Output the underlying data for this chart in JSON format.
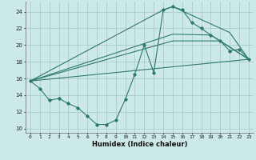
{
  "xlabel": "Humidex (Indice chaleur)",
  "bg_color": "#cde8e8",
  "grid_color": "#a8cccc",
  "line_color": "#2d7b6e",
  "xlim": [
    -0.5,
    23.5
  ],
  "ylim": [
    9.5,
    25.2
  ],
  "xticks": [
    0,
    1,
    2,
    3,
    4,
    5,
    6,
    7,
    8,
    9,
    10,
    11,
    12,
    13,
    14,
    15,
    16,
    17,
    18,
    19,
    20,
    21,
    22,
    23
  ],
  "yticks": [
    10,
    12,
    14,
    16,
    18,
    20,
    22,
    24
  ],
  "line1_x": [
    0,
    1,
    2,
    3,
    4,
    5,
    6,
    7,
    8,
    9,
    10,
    11,
    12,
    13,
    14,
    15,
    16,
    17,
    18,
    19,
    20,
    21,
    22,
    23
  ],
  "line1_y": [
    15.7,
    14.8,
    13.4,
    13.6,
    13.0,
    12.5,
    11.5,
    10.5,
    10.5,
    11.0,
    13.5,
    16.5,
    20.0,
    16.7,
    24.2,
    24.6,
    24.2,
    22.7,
    22.0,
    21.2,
    20.5,
    19.3,
    19.5,
    18.3
  ],
  "line2_x": [
    0,
    23
  ],
  "line2_y": [
    15.7,
    18.3
  ],
  "line3_x": [
    0,
    14,
    15,
    21,
    23
  ],
  "line3_y": [
    15.7,
    24.2,
    24.6,
    21.5,
    18.3
  ],
  "line4_x": [
    0,
    15,
    19,
    23
  ],
  "line4_y": [
    15.7,
    21.3,
    21.2,
    18.3
  ],
  "line5_x": [
    0,
    15,
    20,
    23
  ],
  "line5_y": [
    15.7,
    20.5,
    20.5,
    18.3
  ]
}
